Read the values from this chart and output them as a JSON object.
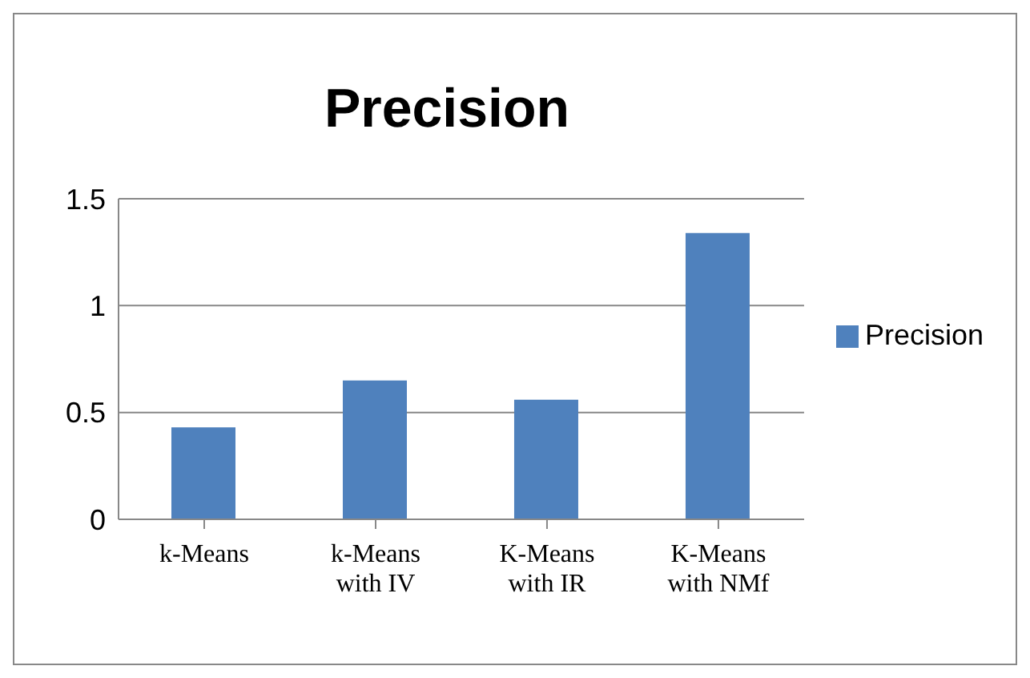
{
  "chart_data": {
    "type": "bar",
    "title": "Precision",
    "categories": [
      "k-Means",
      "k-Means with IV",
      "K-Means with IR",
      "K-Means with NMf"
    ],
    "series": [
      {
        "name": "Precision",
        "color": "#4f81bd",
        "values": [
          0.43,
          0.65,
          0.56,
          1.34
        ]
      }
    ],
    "ylim": [
      0,
      1.5
    ],
    "yticks": [
      0,
      0.5,
      1,
      1.5
    ],
    "grid": "y",
    "legend": "right"
  }
}
